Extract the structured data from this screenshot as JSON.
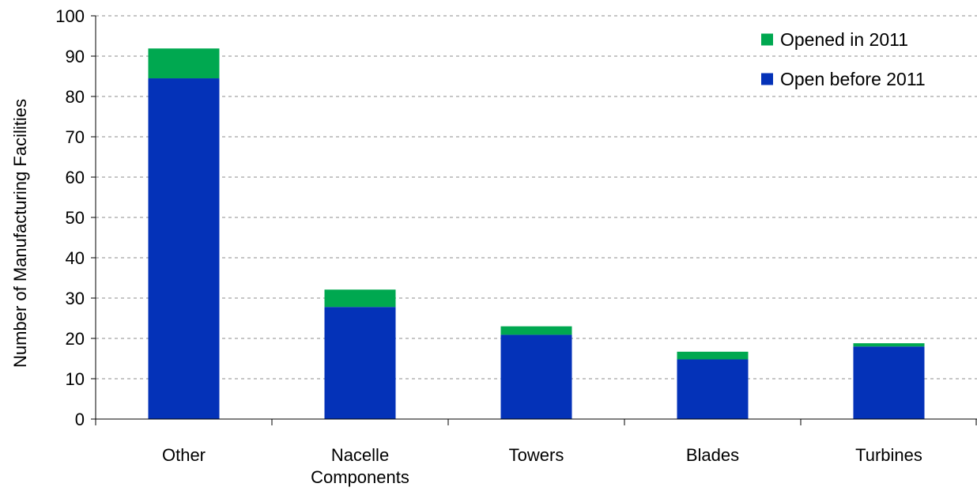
{
  "chart_data": {
    "type": "bar",
    "stacked": true,
    "title": "",
    "xlabel": "",
    "ylabel": "Number of Manufacturing Facilities",
    "ylim": [
      0,
      100
    ],
    "yticks": [
      0,
      10,
      20,
      30,
      40,
      50,
      60,
      70,
      80,
      90,
      100
    ],
    "grid": "horizontal dashed",
    "legend_position": "top-right",
    "categories": [
      [
        "Other"
      ],
      [
        "Nacelle",
        "Components"
      ],
      [
        "Towers"
      ],
      [
        "Blades"
      ],
      [
        "Turbines"
      ]
    ],
    "series": [
      {
        "name": "Open before 2011",
        "color": "#0432B8",
        "values": [
          84.5,
          27.8,
          20.9,
          14.8,
          18.0
        ]
      },
      {
        "name": "Opened in 2011",
        "color": "#00A850",
        "values": [
          7.4,
          4.3,
          2.1,
          1.9,
          0.8
        ]
      }
    ],
    "legend_order": [
      1,
      0
    ]
  }
}
